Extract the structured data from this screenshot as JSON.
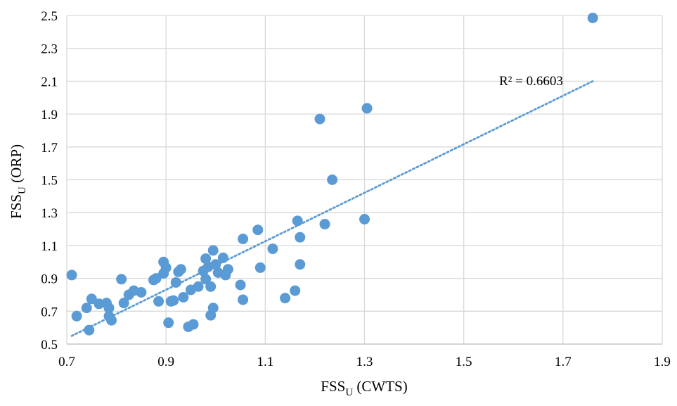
{
  "chart_data": {
    "type": "scatter",
    "xlabel": {
      "main": "FSS",
      "sub": "U",
      "rest": " (CWTS)"
    },
    "ylabel": {
      "main": "FSS",
      "sub": "U",
      "rest": " (ORP)"
    },
    "xlim": [
      0.7,
      1.9
    ],
    "ylim": [
      0.5,
      2.5
    ],
    "x_ticks": [
      "0.7",
      "0.9",
      "1.1",
      "1.3",
      "1.5",
      "1.7",
      "1.9"
    ],
    "y_ticks": [
      "0.5",
      "0.7",
      "0.9",
      "1.1",
      "1.3",
      "1.5",
      "1.7",
      "1.9",
      "2.1",
      "2.3",
      "2.5"
    ],
    "x_tick_values": [
      0.7,
      0.9,
      1.1,
      1.3,
      1.5,
      1.7,
      1.9
    ],
    "y_tick_values": [
      0.5,
      0.7,
      0.9,
      1.1,
      1.3,
      1.5,
      1.7,
      1.9,
      2.1,
      2.3,
      2.5
    ],
    "grid": true,
    "point_color": "#5B9BD5",
    "trendline": {
      "type": "linear",
      "style": "dotted",
      "color": "#5B9BD5",
      "x_range": [
        0.71,
        1.76
      ],
      "y_range": [
        0.55,
        2.1
      ],
      "r_squared_label": "R² = 0.6603"
    },
    "points": [
      [
        0.71,
        0.92
      ],
      [
        0.72,
        0.67
      ],
      [
        0.74,
        0.72
      ],
      [
        0.745,
        0.585
      ],
      [
        0.75,
        0.775
      ],
      [
        0.765,
        0.745
      ],
      [
        0.78,
        0.75
      ],
      [
        0.785,
        0.72
      ],
      [
        0.785,
        0.67
      ],
      [
        0.79,
        0.645
      ],
      [
        0.81,
        0.895
      ],
      [
        0.815,
        0.75
      ],
      [
        0.825,
        0.8
      ],
      [
        0.835,
        0.825
      ],
      [
        0.85,
        0.815
      ],
      [
        0.875,
        0.89
      ],
      [
        0.88,
        0.9
      ],
      [
        0.885,
        0.76
      ],
      [
        0.895,
        1.0
      ],
      [
        0.895,
        0.93
      ],
      [
        0.9,
        0.965
      ],
      [
        0.905,
        0.63
      ],
      [
        0.91,
        0.76
      ],
      [
        0.915,
        0.765
      ],
      [
        0.92,
        0.875
      ],
      [
        0.925,
        0.94
      ],
      [
        0.93,
        0.955
      ],
      [
        0.935,
        0.785
      ],
      [
        0.945,
        0.605
      ],
      [
        0.95,
        0.83
      ],
      [
        0.955,
        0.62
      ],
      [
        0.965,
        0.85
      ],
      [
        0.975,
        0.945
      ],
      [
        0.98,
        1.02
      ],
      [
        0.98,
        0.895
      ],
      [
        0.985,
        0.97
      ],
      [
        0.99,
        0.675
      ],
      [
        0.99,
        0.85
      ],
      [
        0.995,
        1.07
      ],
      [
        0.995,
        0.72
      ],
      [
        1.0,
        0.985
      ],
      [
        1.005,
        0.935
      ],
      [
        1.015,
        1.025
      ],
      [
        1.02,
        0.92
      ],
      [
        1.025,
        0.955
      ],
      [
        1.05,
        0.86
      ],
      [
        1.055,
        1.14
      ],
      [
        1.055,
        0.77
      ],
      [
        1.085,
        1.195
      ],
      [
        1.09,
        0.965
      ],
      [
        1.115,
        1.08
      ],
      [
        1.14,
        0.78
      ],
      [
        1.16,
        0.825
      ],
      [
        1.165,
        1.25
      ],
      [
        1.17,
        1.15
      ],
      [
        1.17,
        0.985
      ],
      [
        1.21,
        1.87
      ],
      [
        1.22,
        1.23
      ],
      [
        1.235,
        1.5
      ],
      [
        1.3,
        1.26
      ],
      [
        1.305,
        1.935
      ],
      [
        1.76,
        2.485
      ]
    ]
  }
}
